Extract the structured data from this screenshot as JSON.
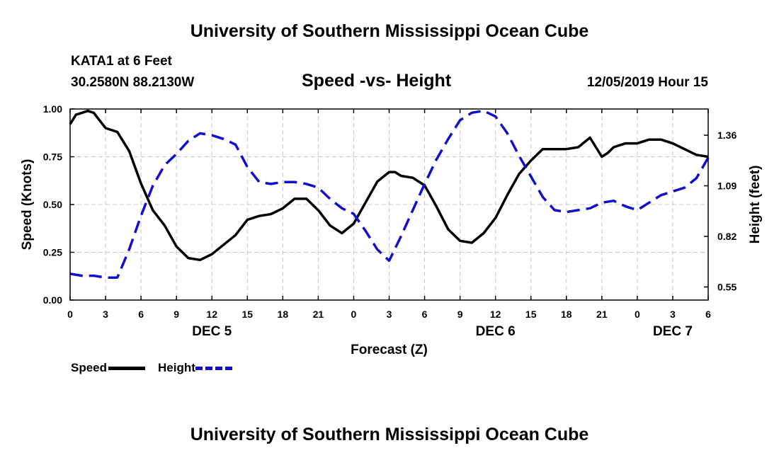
{
  "header": {
    "title_top": "University of Southern Mississippi Ocean Cube",
    "title_bottom": "University of Southern Mississippi Ocean Cube",
    "station": "KATA1 at 6 Feet",
    "coords": "30.2580N 88.2130W",
    "datetime": "12/05/2019 Hour 15"
  },
  "colors": {
    "speed": "#000000",
    "height": "#1010cc",
    "grid": "#c8c8c8"
  },
  "chart_data": {
    "type": "line",
    "title": "Speed -vs- Height",
    "xlabel": "Forecast (Z)",
    "ylabel": "Speed (Knots)",
    "y2label": "Height (feet)",
    "xlim": [
      0,
      54
    ],
    "ylim": [
      0,
      1.0
    ],
    "y2lim": [
      0.48,
      1.5
    ],
    "x_ticks": [
      0,
      3,
      6,
      9,
      12,
      15,
      18,
      21,
      24,
      27,
      30,
      33,
      36,
      39,
      42,
      45,
      48,
      51,
      54
    ],
    "x_tick_labels": [
      "0",
      "3",
      "6",
      "9",
      "12",
      "15",
      "18",
      "21",
      "0",
      "3",
      "6",
      "9",
      "12",
      "15",
      "18",
      "21",
      "0",
      "3",
      "6"
    ],
    "date_labels": [
      {
        "x": 12,
        "label": "DEC 5"
      },
      {
        "x": 36,
        "label": "DEC 6"
      },
      {
        "x": 51,
        "label": "DEC 7"
      }
    ],
    "y_ticks": [
      0,
      0.25,
      0.5,
      0.75,
      1.0
    ],
    "y_tick_labels": [
      "0.00",
      "0.25",
      "0.50",
      "0.75",
      "1.00"
    ],
    "y2_ticks": [
      0.55,
      0.82,
      1.09,
      1.36
    ],
    "y2_tick_labels": [
      "0.55",
      "0.82",
      "1.09",
      "1.36"
    ],
    "grid": true,
    "legend": [
      "Speed",
      "Height"
    ],
    "series": [
      {
        "name": "Speed",
        "axis": "left",
        "style": "solid",
        "x": [
          0,
          0.5,
          1,
          1.5,
          2,
          2.5,
          3,
          4,
          5,
          6,
          7,
          8,
          9,
          10,
          11,
          12,
          13,
          14,
          15,
          16,
          17,
          18,
          19,
          20,
          21,
          22,
          23,
          24,
          25,
          26,
          27,
          27.5,
          28,
          29,
          30,
          31,
          32,
          33,
          34,
          35,
          35.5,
          36,
          37,
          38,
          39,
          40,
          41,
          42,
          43,
          44,
          45,
          45.5,
          46,
          47,
          48,
          49,
          50,
          51,
          52,
          53,
          54
        ],
        "y": [
          0.92,
          0.97,
          0.98,
          0.99,
          0.98,
          0.94,
          0.9,
          0.88,
          0.78,
          0.61,
          0.47,
          0.39,
          0.28,
          0.22,
          0.21,
          0.24,
          0.29,
          0.34,
          0.42,
          0.44,
          0.45,
          0.48,
          0.53,
          0.53,
          0.47,
          0.39,
          0.35,
          0.4,
          0.51,
          0.62,
          0.67,
          0.67,
          0.65,
          0.64,
          0.6,
          0.49,
          0.37,
          0.31,
          0.3,
          0.35,
          0.39,
          0.43,
          0.55,
          0.66,
          0.73,
          0.79,
          0.79,
          0.79,
          0.8,
          0.85,
          0.75,
          0.77,
          0.8,
          0.82,
          0.82,
          0.84,
          0.84,
          0.82,
          0.79,
          0.76,
          0.75
        ]
      },
      {
        "name": "Height",
        "axis": "right",
        "style": "dashed",
        "x": [
          0,
          1,
          2,
          3,
          4,
          5,
          6,
          7,
          8,
          9,
          10,
          11,
          12,
          13,
          14,
          15,
          16,
          17,
          18,
          19,
          20,
          21,
          22,
          23,
          24,
          25,
          26,
          27,
          28,
          29,
          30,
          31,
          32,
          33,
          34,
          35,
          36,
          37,
          38,
          39,
          40,
          41,
          42,
          43,
          44,
          45,
          46,
          47,
          48,
          49,
          50,
          51,
          52,
          53,
          54
        ],
        "y": [
          0.62,
          0.61,
          0.61,
          0.6,
          0.6,
          0.75,
          0.93,
          1.09,
          1.2,
          1.26,
          1.33,
          1.37,
          1.36,
          1.34,
          1.31,
          1.19,
          1.11,
          1.1,
          1.11,
          1.11,
          1.1,
          1.08,
          1.02,
          0.97,
          0.94,
          0.85,
          0.75,
          0.69,
          0.82,
          0.96,
          1.1,
          1.23,
          1.34,
          1.44,
          1.48,
          1.49,
          1.46,
          1.37,
          1.25,
          1.14,
          1.03,
          0.96,
          0.95,
          0.96,
          0.97,
          1.0,
          1.01,
          0.98,
          0.96,
          1.0,
          1.04,
          1.06,
          1.08,
          1.13,
          1.24
        ]
      }
    ]
  }
}
